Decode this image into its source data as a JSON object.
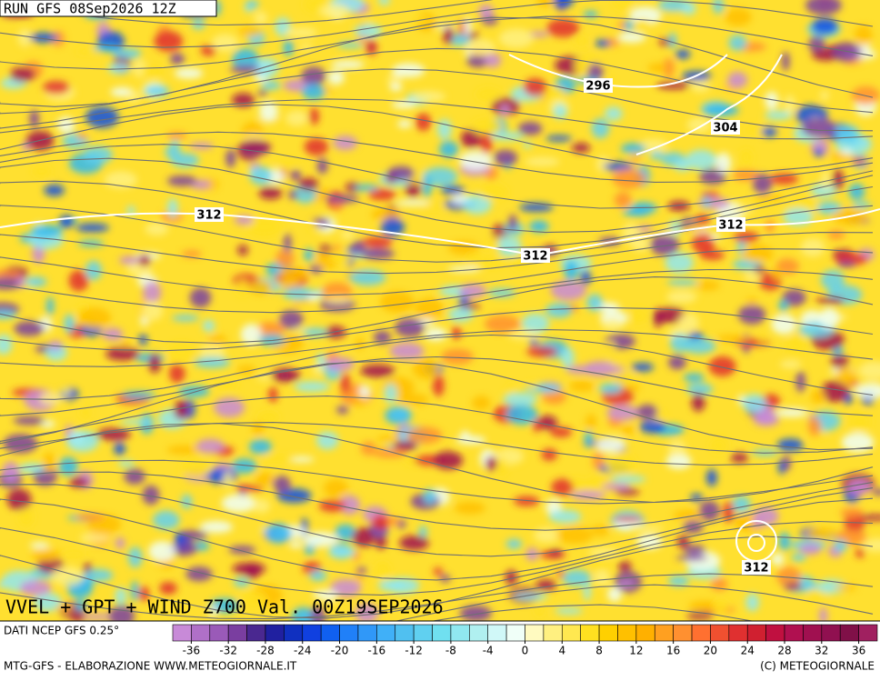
{
  "header": {
    "run": "RUN GFS 08Sep2026 12Z"
  },
  "map": {
    "contour_labels": [
      "296",
      "304",
      "312",
      "312",
      "312",
      "312"
    ]
  },
  "footer": {
    "title": "VVEL + GPT + WIND Z700 Val. 00Z19SEP2026",
    "source": "DATI NCEP GFS 0.25°",
    "credit_left": "MTG-GFS - ELABORAZIONE WWW.METEOGIORNALE.IT",
    "credit_right": "(C) METEOGIORNALE"
  },
  "colorbar": {
    "lim": [
      -38,
      38
    ],
    "ticks": [
      -36,
      -32,
      -28,
      -24,
      -20,
      -16,
      -12,
      -8,
      -4,
      0,
      4,
      8,
      12,
      16,
      20,
      24,
      28,
      32,
      36
    ],
    "colors": [
      "#c88ad8",
      "#b070c8",
      "#9a5ab8",
      "#7a3ea0",
      "#4a2890",
      "#2020a0",
      "#1030c0",
      "#1040e0",
      "#1060f0",
      "#2080f8",
      "#3098f8",
      "#40b0f8",
      "#50c0f0",
      "#60d0f0",
      "#70e0f0",
      "#90e8f0",
      "#b0f0f0",
      "#d0f8f8",
      "#f0fff8",
      "#fffac0",
      "#fff080",
      "#ffe850",
      "#ffe020",
      "#ffd000",
      "#ffc000",
      "#ffb000",
      "#ffa020",
      "#ff9030",
      "#ff7030",
      "#f05030",
      "#e03030",
      "#d02030",
      "#c01040",
      "#b01050",
      "#a01050",
      "#901050",
      "#801048",
      "#a02060"
    ]
  }
}
